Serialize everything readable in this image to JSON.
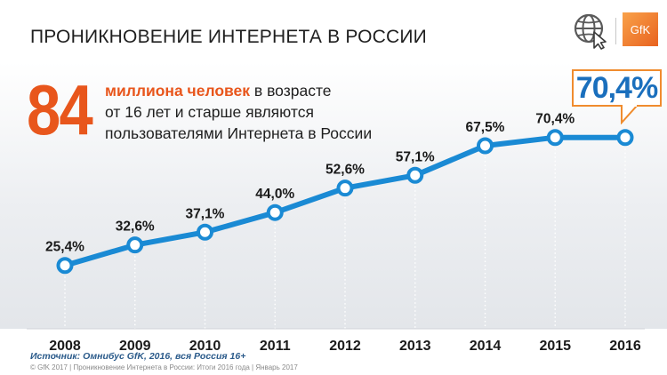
{
  "header": {
    "title": "ПРОНИКНОВЕНИЕ ИНТЕРНЕТА В РОССИИ",
    "logo_text": "GfK",
    "globe_icon": "globe-cursor-icon"
  },
  "highlight": {
    "number": "84",
    "line1_emphasis": "миллиона человек",
    "line1_rest": " в возрасте",
    "line2": "от 16 лет и старше являются",
    "line3": "пользователями Интернета в России"
  },
  "callout": {
    "value_label": "70,4%"
  },
  "colors": {
    "accent": "#e8561c",
    "line": "#1a8ad4",
    "callout_border": "#f08c2e",
    "callout_text": "#1a6fbd"
  },
  "chart_data": {
    "type": "line",
    "x": [
      "2008",
      "2009",
      "2010",
      "2011",
      "2012",
      "2013",
      "2014",
      "2015",
      "2016"
    ],
    "values": [
      25.4,
      32.6,
      37.1,
      44.0,
      52.6,
      57.1,
      67.5,
      70.4,
      70.4
    ],
    "labels": [
      "25,4%",
      "32,6%",
      "37,1%",
      "44,0%",
      "52,6%",
      "57,1%",
      "67,5%",
      "70,4%",
      ""
    ],
    "ylim": [
      0,
      100
    ],
    "grid": "vertical dotted per year",
    "legend": "none"
  },
  "footer": {
    "source": "Источник: Омнибус GfK, 2016, вся Россия 16+",
    "copyright": "© GfK 2017 | Проникновение Интернета в России: Итоги 2016 года | Январь 2017"
  }
}
